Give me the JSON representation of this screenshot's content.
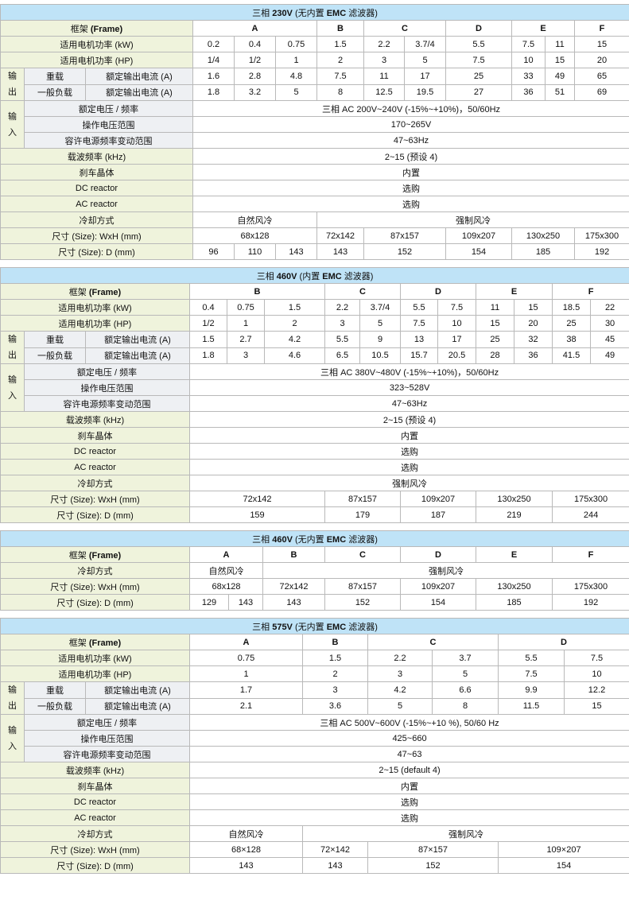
{
  "tables": [
    {
      "title": {
        "p1": "三相 ",
        "v": "230V",
        "p2": " (无内置 ",
        "emc": "EMC",
        "p3": " 滤波器)"
      },
      "frame_label": {
        "p1": "框架 ",
        "b": "(Frame)"
      },
      "rows": [
        [
          "A",
          "B",
          "C",
          "D",
          "E",
          "F"
        ],
        [
          "适用电机功率 (kW)",
          "0.2",
          "0.4",
          "0.75",
          "1.5",
          "2.2",
          "3.7/4",
          "5.5",
          "7.5",
          "11",
          "15"
        ],
        [
          "适用电机功率 (HP)",
          "1/4",
          "1/2",
          "1",
          "2",
          "3",
          "5",
          "7.5",
          "10",
          "15",
          "20"
        ],
        [
          "输出",
          "重载",
          "额定输出电流 (A)",
          "1.6",
          "2.8",
          "4.8",
          "7.5",
          "11",
          "17",
          "25",
          "33",
          "49",
          "65"
        ],
        [
          "一般负载",
          "额定输出电流 (A)",
          "1.8",
          "3.2",
          "5",
          "8",
          "12.5",
          "19.5",
          "27",
          "36",
          "51",
          "69"
        ],
        [
          "输入",
          "额定电压 / 频率",
          "三相 AC 200V~240V (-15%~+10%)，50/60Hz"
        ],
        [
          "操作电压范围",
          "170~265V"
        ],
        [
          "容许电源频率变动范围",
          "47~63Hz"
        ],
        [
          "载波频率 (kHz)",
          "2~15 (预设 4)"
        ],
        [
          "刹车晶体",
          "内置"
        ],
        [
          "DC reactor",
          "选购"
        ],
        [
          "AC reactor",
          "选购"
        ],
        [
          "冷却方式",
          "自然风冷",
          "强制风冷"
        ],
        [
          "尺寸 (Size): WxH (mm)",
          "68x128",
          "72x142",
          "87x157",
          "109x207",
          "130x250",
          "175x300"
        ],
        [
          "尺寸 (Size): D (mm)",
          "96",
          "110",
          "143",
          "143",
          "152",
          "154",
          "185",
          "192"
        ]
      ]
    },
    {
      "title": {
        "p1": "三相 ",
        "v": "460V",
        "p2": " (内置 ",
        "emc": "EMC",
        "p3": " 滤波器)"
      },
      "frame_label": {
        "p1": "框架 ",
        "b": "(Frame)"
      },
      "rows": [
        [
          "B",
          "C",
          "D",
          "E",
          "F"
        ],
        [
          "适用电机功率 (kW)",
          "0.4",
          "0.75",
          "1.5",
          "2.2",
          "3.7/4",
          "5.5",
          "7.5",
          "11",
          "15",
          "18.5",
          "22"
        ],
        [
          "适用电机功率 (HP)",
          "1/2",
          "1",
          "2",
          "3",
          "5",
          "7.5",
          "10",
          "15",
          "20",
          "25",
          "30"
        ],
        [
          "输出",
          "重载",
          "额定输出电流 (A)",
          "1.5",
          "2.7",
          "4.2",
          "5.5",
          "9",
          "13",
          "17",
          "25",
          "32",
          "38",
          "45"
        ],
        [
          "一般负载",
          "额定输出电流 (A)",
          "1.8",
          "3",
          "4.6",
          "6.5",
          "10.5",
          "15.7",
          "20.5",
          "28",
          "36",
          "41.5",
          "49"
        ],
        [
          "输入",
          "额定电压 / 频率",
          "三相 AC 380V~480V (-15%~+10%)，50/60Hz"
        ],
        [
          "操作电压范围",
          "323~528V"
        ],
        [
          "容许电源频率变动范围",
          "47~63Hz"
        ],
        [
          "载波频率 (kHz)",
          "2~15 (预设 4)"
        ],
        [
          "刹车晶体",
          "内置"
        ],
        [
          "DC reactor",
          "选购"
        ],
        [
          "AC reactor",
          "选购"
        ],
        [
          "冷却方式",
          "强制风冷"
        ],
        [
          "尺寸 (Size): WxH (mm)",
          "72x142",
          "87x157",
          "109x207",
          "130x250",
          "175x300"
        ],
        [
          "尺寸 (Size): D (mm)",
          "159",
          "179",
          "187",
          "219",
          "244"
        ]
      ]
    },
    {
      "title": {
        "p1": "三相 ",
        "v": "460V",
        "p2": " (无内置 ",
        "emc": "EMC",
        "p3": " 滤波器)"
      },
      "frame_label": {
        "p1": "框架 ",
        "b": "(Frame)"
      },
      "rows": [
        [
          "A",
          "B",
          "C",
          "D",
          "E",
          "F"
        ],
        [
          "冷却方式",
          "自然风冷",
          "强制风冷"
        ],
        [
          "尺寸 (Size): WxH (mm)",
          "68x128",
          "72x142",
          "87x157",
          "109x207",
          "130x250",
          "175x300"
        ],
        [
          "尺寸 (Size): D (mm)",
          "129",
          "143",
          "143",
          "152",
          "154",
          "185",
          "192"
        ]
      ]
    },
    {
      "title": {
        "p1": "三相 ",
        "v": "575V",
        "p2": " (无内置 ",
        "emc": "EMC",
        "p3": " 滤波器)"
      },
      "frame_label": {
        "p1": "框架 ",
        "b": "(Frame)"
      },
      "rows": [
        [
          "A",
          "B",
          "C",
          "D"
        ],
        [
          "适用电机功率 (kW)",
          "0.75",
          "1.5",
          "2.2",
          "3.7",
          "5.5",
          "7.5"
        ],
        [
          "适用电机功率 (HP)",
          "1",
          "2",
          "3",
          "5",
          "7.5",
          "10"
        ],
        [
          "输出",
          "重载",
          "额定输出电流 (A)",
          "1.7",
          "3",
          "4.2",
          "6.6",
          "9.9",
          "12.2"
        ],
        [
          "一般负载",
          "额定输出电流 (A)",
          "2.1",
          "3.6",
          "5",
          "8",
          "11.5",
          "15"
        ],
        [
          "输入",
          "额定电压 / 频率",
          "三相 AC 500V~600V (-15%~+10 %), 50/60 Hz"
        ],
        [
          "操作电压范围",
          "425~660"
        ],
        [
          "容许电源频率变动范围",
          "47~63"
        ],
        [
          "载波频率 (kHz)",
          "2~15 (default 4)"
        ],
        [
          "刹车晶体",
          "内置"
        ],
        [
          "DC reactor",
          "选购"
        ],
        [
          "AC reactor",
          "选购"
        ],
        [
          "冷却方式",
          "自然风冷",
          "强制风冷"
        ],
        [
          "尺寸 (Size): WxH (mm)",
          "68×128",
          "72×142",
          "87×157",
          "109×207"
        ],
        [
          "尺寸 (Size): D (mm)",
          "143",
          "143",
          "152",
          "154"
        ]
      ]
    }
  ],
  "colors": {
    "title_bg": "#bfe3f7",
    "label_bg": "#eff3dc",
    "sublabel_bg": "#eef0f3",
    "grid": "#b9b9b9"
  }
}
